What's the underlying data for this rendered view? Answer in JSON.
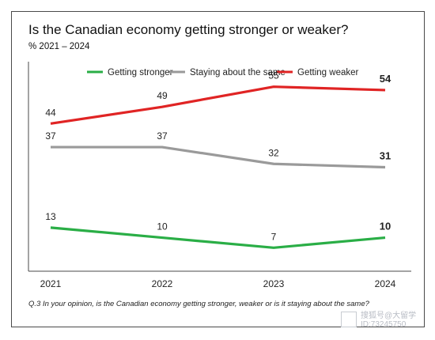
{
  "chart_data": {
    "type": "line",
    "title": "Is the Canadian economy getting stronger or weaker?",
    "subtitle": "%  2021 – 2024",
    "xlabel": "",
    "ylabel": "",
    "x": [
      "2021",
      "2022",
      "2023",
      "2024"
    ],
    "ylim": [
      0,
      62
    ],
    "grid": false,
    "legend_position": "top",
    "series": [
      {
        "name": "Getting stronger",
        "color": "#2aae46",
        "values": [
          13,
          10,
          7,
          10
        ],
        "labels": [
          "13",
          "10",
          "7",
          "10"
        ]
      },
      {
        "name": "Staying about the same",
        "color": "#9a9a9a",
        "values": [
          37,
          37,
          32,
          31
        ],
        "labels": [
          "37",
          "37",
          "32",
          "31"
        ]
      },
      {
        "name": "Getting weaker",
        "color": "#e02424",
        "values": [
          44,
          49,
          55,
          54
        ],
        "labels": [
          "44",
          "49",
          "55",
          "54"
        ]
      }
    ]
  },
  "footnote": "Q.3  In your opinion, is the Canadian economy getting stronger, weaker or is it staying about the same?",
  "watermark": {
    "line1": "搜狐号@大留学",
    "line2": "ID:73245750"
  }
}
